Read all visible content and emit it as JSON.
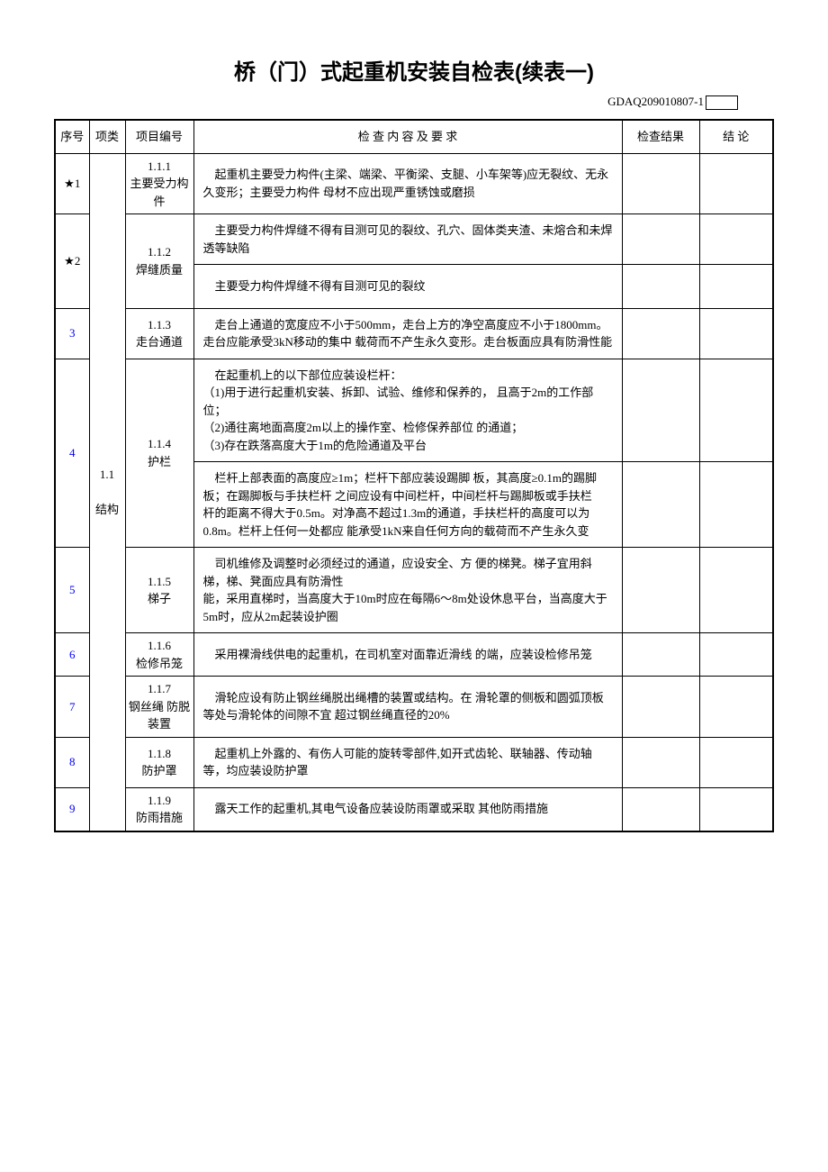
{
  "title": "桥（门）式起重机安装自检表(续表一)",
  "form_no_prefix": "GDAQ209010807-1",
  "headers": {
    "seq": "序号",
    "cat": "项类",
    "code": "项目编号",
    "req": "检 查 内 容 及 要 求",
    "res": "检查结果",
    "con": "结  论"
  },
  "category": {
    "code": "1.1",
    "name": "结构"
  },
  "rows": [
    {
      "seq": "★1",
      "seq_color": "#000000",
      "code": "1.1.1\n主要受力构件",
      "req": "　起重机主要受力构件(主梁、端梁、平衡梁、支腿、小车架等)应无裂纹、无永久变形；主要受力构件 母材不应出现严重锈蚀或磨损"
    },
    {
      "seq": "★2",
      "seq_color": "#000000",
      "code": "1.1.2\n焊缝质量",
      "req_split": [
        "　主要受力构件焊缝不得有目测可见的裂纹、孔穴、固体类夹渣、未熔合和未焊透等缺陷",
        "　主要受力构件焊缝不得有目测可见的裂纹"
      ]
    },
    {
      "seq": "3",
      "seq_color": "#0000ff",
      "code": "1.1.3\n走台通道",
      "req": "　走台上通道的宽度应不小于500mm，走台上方的净空高度应不小于1800mm。走台应能承受3kN移动的集中 载荷而不产生永久变形。走台板面应具有防滑性能"
    },
    {
      "seq": "4",
      "seq_color": "#0000ff",
      "code": "1.1.4\n护栏",
      "req_split": [
        "　在起重机上的以下部位应装设栏杆：\n（1)用于进行起重机安装、拆卸、试验、维修和保养的， 且高于2m的工作部位；\n（2)通往离地面高度2m以上的操作室、检修保养部位 的通道；\n（3)存在跌落高度大于1m的危险通道及平台",
        "　栏杆上部表面的高度应≥1m；栏杆下部应装设踢脚 板，其高度≥0.1m的踢脚板；在踢脚板与手扶栏杆 之间应设有中间栏杆，中间栏杆与踢脚板或手扶栏\n杆的距离不得大于0.5m。对净高不超过1.3m的通道，手扶栏杆的高度可以为0.8m。栏杆上任何一处都应 能承受1kN来自任何方向的载荷而不产生永久变"
      ]
    },
    {
      "seq": "5",
      "seq_color": "#0000ff",
      "code": "1.1.5\n梯子",
      "req": "　司机维修及调整时必须经过的通道，应设安全、方 便的梯凳。梯子宜用斜梯，梯、凳面应具有防滑性\n能，采用直梯时，当高度大于10m时应在每隔6～8m处设休息平台，当高度大于5m时，应从2m起装设护圈"
    },
    {
      "seq": "6",
      "seq_color": "#0000ff",
      "code": "1.1.6\n检修吊笼",
      "req": "　采用裸滑线供电的起重机，在司机室对面靠近滑线 的端，应装设检修吊笼"
    },
    {
      "seq": "7",
      "seq_color": "#0000ff",
      "code": "1.1.7\n钢丝绳 防脱装置",
      "req": "　滑轮应设有防止钢丝绳脱出绳槽的装置或结构。在 滑轮罩的侧板和圆弧顶板等处与滑轮体的间隙不宜 超过钢丝绳直径的20%"
    },
    {
      "seq": "8",
      "seq_color": "#0000ff",
      "code": "1.1.8\n防护罩",
      "req": "　起重机上外露的、有伤人可能的旋转零部件,如开式齿轮、联轴器、传动轴等，均应装设防护罩"
    },
    {
      "seq": "9",
      "seq_color": "#0000ff",
      "code": "1.1.9\n防雨措施",
      "req": "　露天工作的起重机,其电气设备应装设防雨罩或采取 其他防雨措施"
    }
  ],
  "style": {
    "text_color": "#000000",
    "link_blue": "#0000ff",
    "border_color": "#000000",
    "bg": "#ffffff",
    "title_fontsize_pt": 18,
    "body_fontsize_pt": 10
  }
}
